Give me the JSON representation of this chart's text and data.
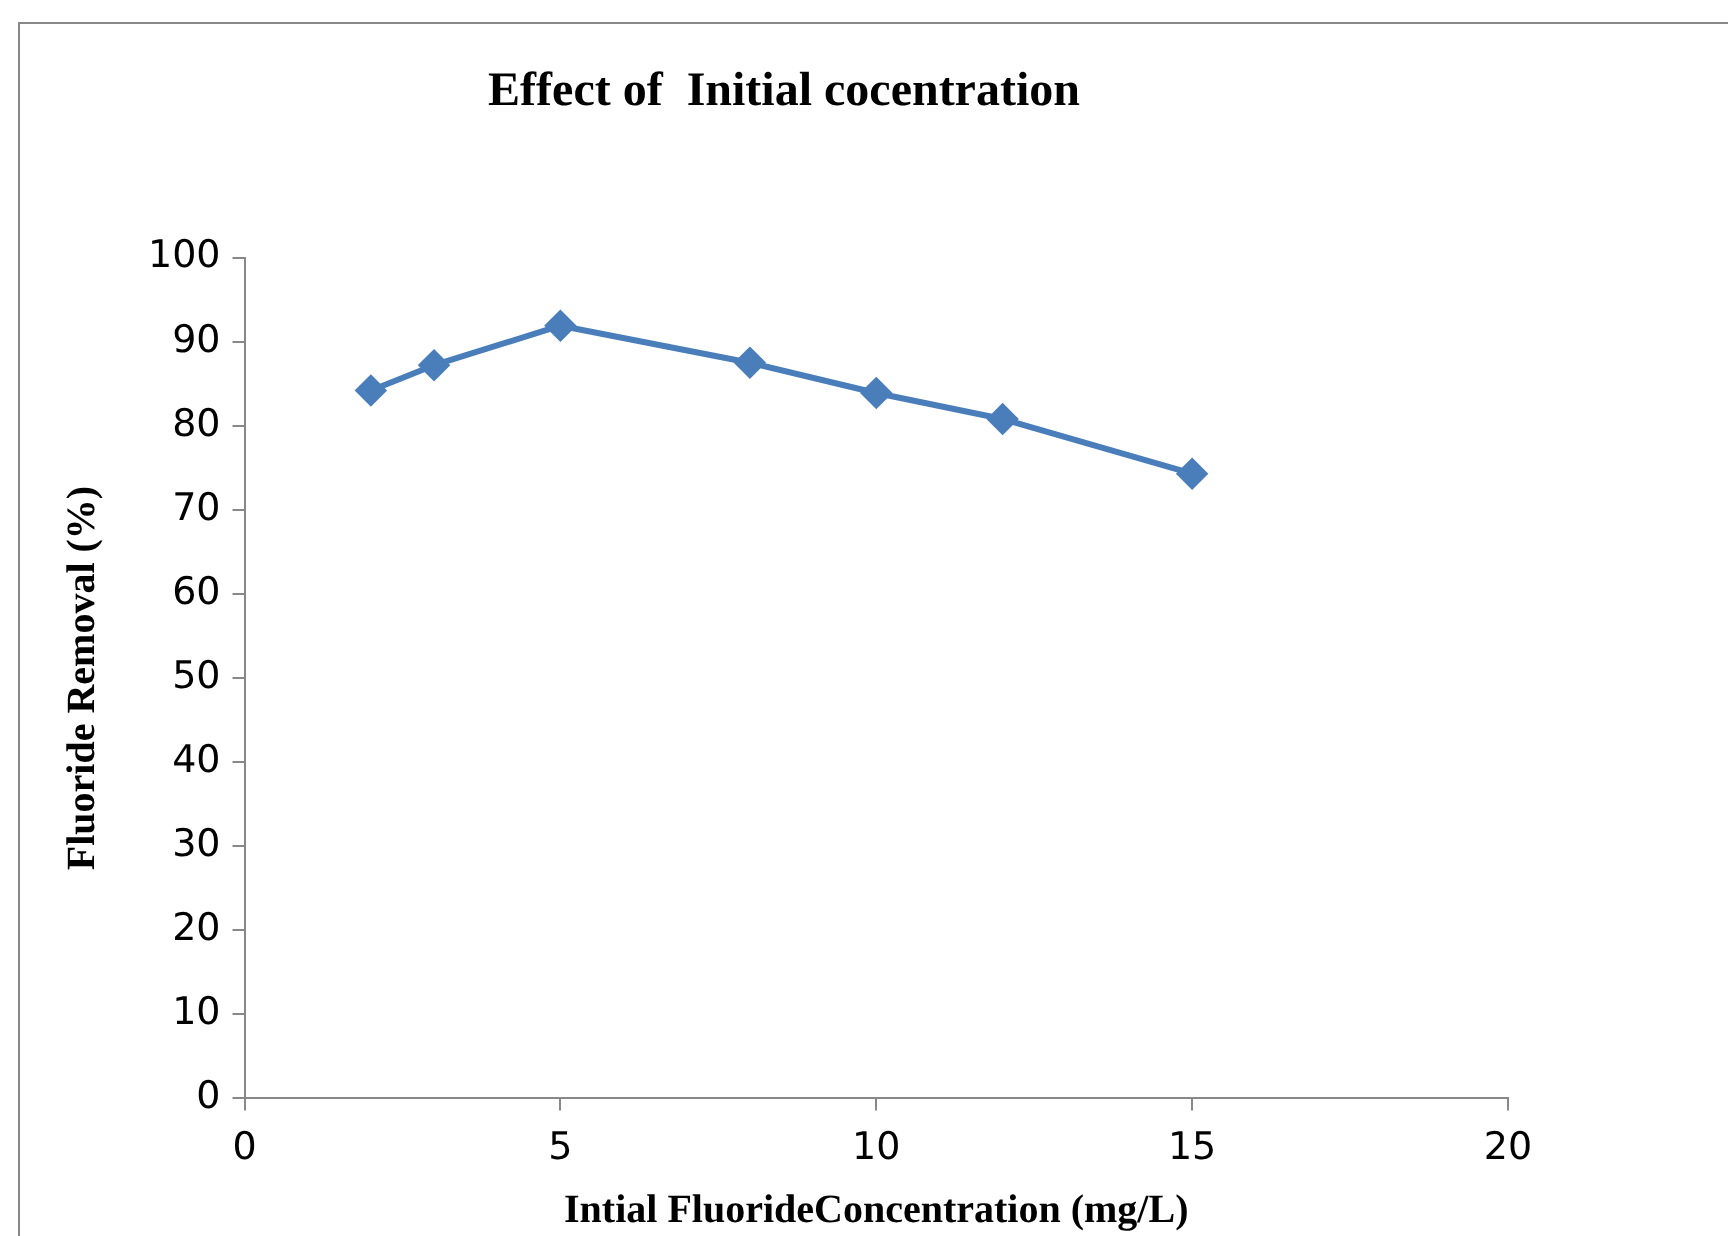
{
  "chart_data": {
    "type": "line",
    "title": "Effect of  Initial cocentration",
    "xlabel": "Intial FluorideConcentration (mg/L)",
    "ylabel": "Fluoride Removal (%)",
    "x": [
      2,
      3,
      5,
      8,
      10,
      12,
      15
    ],
    "series": [
      {
        "color": "#4a7ebb",
        "values": [
          84.2,
          87.2,
          91.9,
          87.5,
          83.9,
          80.8,
          74.3
        ]
      }
    ],
    "xlim": [
      0,
      20
    ],
    "xticks": [
      0,
      5,
      10,
      15,
      20
    ],
    "ylim": [
      0,
      100
    ],
    "yticks": [
      0,
      10,
      20,
      30,
      40,
      50,
      60,
      70,
      80,
      90,
      100
    ],
    "grid": false,
    "legend": false,
    "marker": "diamond",
    "line_style": "solid"
  }
}
